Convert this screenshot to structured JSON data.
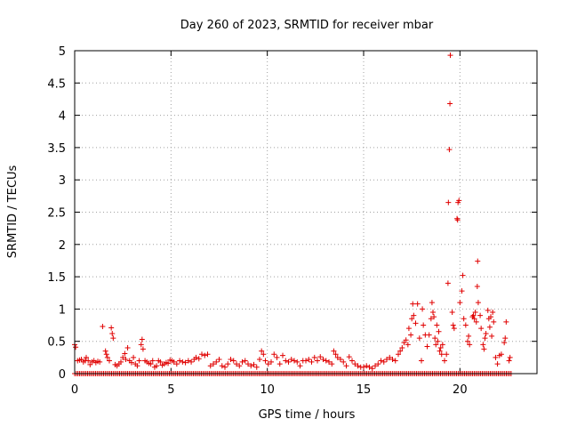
{
  "chart_data": {
    "type": "scatter",
    "title": "Day 260 of 2023, SRMTID for receiver mbar",
    "xlabel": "GPS time / hours",
    "ylabel": "SRMTID / TECUs",
    "xlim": [
      0,
      24
    ],
    "ylim": [
      0,
      5
    ],
    "x_ticks": [
      0,
      5,
      10,
      15,
      20
    ],
    "x_tick_labels": [
      "0",
      "5",
      "10",
      "15",
      "20"
    ],
    "y_ticks": [
      0,
      0.5,
      1,
      1.5,
      2,
      2.5,
      3,
      3.5,
      4,
      4.5,
      5
    ],
    "y_tick_labels": [
      "0",
      "0.5",
      "1",
      "1.5",
      "2",
      "2.5",
      "3",
      "3.5",
      "4",
      "4.5",
      "5"
    ],
    "grid": true,
    "marker": "+",
    "color": "#e00000",
    "zero_row_x_range": [
      0,
      22.7
    ],
    "zero_row_step": 0.0833,
    "series": [
      {
        "name": "SRMTID",
        "points": [
          [
            0.0,
            0.45
          ],
          [
            0.05,
            0.41
          ],
          [
            0.15,
            0.2
          ],
          [
            0.25,
            0.21
          ],
          [
            0.35,
            0.22
          ],
          [
            0.45,
            0.18
          ],
          [
            0.55,
            0.2
          ],
          [
            0.6,
            0.25
          ],
          [
            0.7,
            0.2
          ],
          [
            0.8,
            0.14
          ],
          [
            0.9,
            0.18
          ],
          [
            1.0,
            0.2
          ],
          [
            1.1,
            0.17
          ],
          [
            1.2,
            0.19
          ],
          [
            1.3,
            0.18
          ],
          [
            1.45,
            0.73
          ],
          [
            1.6,
            0.35
          ],
          [
            1.65,
            0.3
          ],
          [
            1.7,
            0.25
          ],
          [
            1.8,
            0.2
          ],
          [
            1.9,
            0.71
          ],
          [
            1.95,
            0.62
          ],
          [
            2.0,
            0.55
          ],
          [
            2.1,
            0.14
          ],
          [
            2.2,
            0.12
          ],
          [
            2.3,
            0.15
          ],
          [
            2.4,
            0.18
          ],
          [
            2.5,
            0.25
          ],
          [
            2.6,
            0.31
          ],
          [
            2.65,
            0.22
          ],
          [
            2.75,
            0.4
          ],
          [
            2.85,
            0.2
          ],
          [
            2.95,
            0.17
          ],
          [
            3.05,
            0.25
          ],
          [
            3.15,
            0.15
          ],
          [
            3.25,
            0.12
          ],
          [
            3.35,
            0.2
          ],
          [
            3.45,
            0.45
          ],
          [
            3.5,
            0.53
          ],
          [
            3.55,
            0.38
          ],
          [
            3.65,
            0.2
          ],
          [
            3.75,
            0.18
          ],
          [
            3.85,
            0.16
          ],
          [
            3.95,
            0.15
          ],
          [
            4.05,
            0.2
          ],
          [
            4.15,
            0.1
          ],
          [
            4.25,
            0.12
          ],
          [
            4.35,
            0.2
          ],
          [
            4.45,
            0.18
          ],
          [
            4.55,
            0.13
          ],
          [
            4.65,
            0.15
          ],
          [
            4.75,
            0.17
          ],
          [
            4.85,
            0.16
          ],
          [
            4.95,
            0.21
          ],
          [
            5.05,
            0.2
          ],
          [
            5.15,
            0.18
          ],
          [
            5.3,
            0.15
          ],
          [
            5.45,
            0.2
          ],
          [
            5.6,
            0.18
          ],
          [
            5.75,
            0.17
          ],
          [
            5.9,
            0.2
          ],
          [
            6.05,
            0.18
          ],
          [
            6.2,
            0.22
          ],
          [
            6.3,
            0.25
          ],
          [
            6.45,
            0.23
          ],
          [
            6.6,
            0.3
          ],
          [
            6.75,
            0.28
          ],
          [
            6.9,
            0.3
          ],
          [
            7.05,
            0.12
          ],
          [
            7.2,
            0.15
          ],
          [
            7.35,
            0.18
          ],
          [
            7.5,
            0.22
          ],
          [
            7.65,
            0.12
          ],
          [
            7.8,
            0.1
          ],
          [
            7.95,
            0.15
          ],
          [
            8.1,
            0.22
          ],
          [
            8.25,
            0.2
          ],
          [
            8.4,
            0.15
          ],
          [
            8.55,
            0.12
          ],
          [
            8.7,
            0.18
          ],
          [
            8.85,
            0.2
          ],
          [
            9.0,
            0.15
          ],
          [
            9.15,
            0.12
          ],
          [
            9.3,
            0.14
          ],
          [
            9.45,
            0.1
          ],
          [
            9.6,
            0.22
          ],
          [
            9.7,
            0.35
          ],
          [
            9.8,
            0.3
          ],
          [
            9.9,
            0.2
          ],
          [
            10.05,
            0.15
          ],
          [
            10.2,
            0.18
          ],
          [
            10.35,
            0.3
          ],
          [
            10.5,
            0.25
          ],
          [
            10.65,
            0.15
          ],
          [
            10.8,
            0.28
          ],
          [
            10.95,
            0.2
          ],
          [
            11.1,
            0.18
          ],
          [
            11.25,
            0.22
          ],
          [
            11.4,
            0.2
          ],
          [
            11.55,
            0.18
          ],
          [
            11.7,
            0.12
          ],
          [
            11.85,
            0.2
          ],
          [
            12.0,
            0.2
          ],
          [
            12.15,
            0.22
          ],
          [
            12.3,
            0.18
          ],
          [
            12.45,
            0.25
          ],
          [
            12.6,
            0.2
          ],
          [
            12.75,
            0.26
          ],
          [
            12.9,
            0.22
          ],
          [
            13.05,
            0.2
          ],
          [
            13.2,
            0.18
          ],
          [
            13.35,
            0.15
          ],
          [
            13.45,
            0.35
          ],
          [
            13.55,
            0.3
          ],
          [
            13.65,
            0.25
          ],
          [
            13.8,
            0.22
          ],
          [
            13.95,
            0.18
          ],
          [
            14.1,
            0.12
          ],
          [
            14.25,
            0.26
          ],
          [
            14.4,
            0.2
          ],
          [
            14.55,
            0.15
          ],
          [
            14.7,
            0.12
          ],
          [
            14.85,
            0.1
          ],
          [
            15.0,
            0.1
          ],
          [
            15.15,
            0.12
          ],
          [
            15.3,
            0.1
          ],
          [
            15.45,
            0.08
          ],
          [
            15.6,
            0.12
          ],
          [
            15.75,
            0.15
          ],
          [
            15.9,
            0.2
          ],
          [
            16.05,
            0.18
          ],
          [
            16.2,
            0.22
          ],
          [
            16.35,
            0.25
          ],
          [
            16.5,
            0.22
          ],
          [
            16.65,
            0.2
          ],
          [
            16.8,
            0.3
          ],
          [
            16.9,
            0.35
          ],
          [
            17.0,
            0.4
          ],
          [
            17.1,
            0.48
          ],
          [
            17.2,
            0.52
          ],
          [
            17.3,
            0.45
          ],
          [
            17.35,
            0.7
          ],
          [
            17.45,
            0.6
          ],
          [
            17.5,
            0.85
          ],
          [
            17.55,
            1.08
          ],
          [
            17.6,
            0.9
          ],
          [
            17.7,
            0.78
          ],
          [
            17.8,
            1.08
          ],
          [
            17.9,
            0.55
          ],
          [
            18.0,
            0.2
          ],
          [
            18.05,
            1.0
          ],
          [
            18.1,
            0.75
          ],
          [
            18.2,
            0.6
          ],
          [
            18.3,
            0.42
          ],
          [
            18.4,
            0.6
          ],
          [
            18.5,
            0.85
          ],
          [
            18.55,
            1.1
          ],
          [
            18.6,
            0.95
          ],
          [
            18.65,
            0.88
          ],
          [
            18.7,
            0.55
          ],
          [
            18.75,
            0.45
          ],
          [
            18.8,
            0.75
          ],
          [
            18.85,
            0.5
          ],
          [
            18.9,
            0.65
          ],
          [
            18.95,
            0.35
          ],
          [
            19.0,
            0.4
          ],
          [
            19.05,
            0.3
          ],
          [
            19.1,
            0.45
          ],
          [
            19.2,
            0.2
          ],
          [
            19.3,
            0.3
          ],
          [
            19.38,
            1.4
          ],
          [
            19.4,
            2.65
          ],
          [
            19.45,
            3.47
          ],
          [
            19.48,
            4.18
          ],
          [
            19.5,
            4.93
          ],
          [
            19.6,
            0.95
          ],
          [
            19.65,
            0.75
          ],
          [
            19.7,
            0.7
          ],
          [
            19.85,
            2.4
          ],
          [
            19.88,
            2.38
          ],
          [
            19.9,
            2.65
          ],
          [
            19.95,
            2.68
          ],
          [
            20.0,
            1.1
          ],
          [
            20.1,
            1.28
          ],
          [
            20.15,
            1.52
          ],
          [
            20.2,
            0.85
          ],
          [
            20.3,
            0.75
          ],
          [
            20.4,
            0.5
          ],
          [
            20.45,
            0.58
          ],
          [
            20.5,
            0.45
          ],
          [
            20.65,
            0.88
          ],
          [
            20.7,
            0.9
          ],
          [
            20.75,
            0.85
          ],
          [
            20.8,
            0.95
          ],
          [
            20.85,
            0.8
          ],
          [
            20.9,
            1.35
          ],
          [
            20.92,
            1.74
          ],
          [
            20.95,
            1.1
          ],
          [
            21.05,
            0.9
          ],
          [
            21.1,
            0.7
          ],
          [
            21.2,
            0.45
          ],
          [
            21.25,
            0.38
          ],
          [
            21.3,
            0.55
          ],
          [
            21.35,
            0.62
          ],
          [
            21.45,
            0.98
          ],
          [
            21.5,
            0.85
          ],
          [
            21.55,
            0.72
          ],
          [
            21.6,
            0.88
          ],
          [
            21.65,
            0.58
          ],
          [
            21.7,
            0.95
          ],
          [
            21.75,
            0.8
          ],
          [
            21.85,
            0.25
          ],
          [
            21.95,
            0.15
          ],
          [
            22.05,
            0.28
          ],
          [
            22.15,
            0.3
          ],
          [
            22.3,
            0.48
          ],
          [
            22.35,
            0.55
          ],
          [
            22.4,
            0.8
          ],
          [
            22.55,
            0.2
          ],
          [
            22.6,
            0.25
          ]
        ]
      }
    ]
  }
}
